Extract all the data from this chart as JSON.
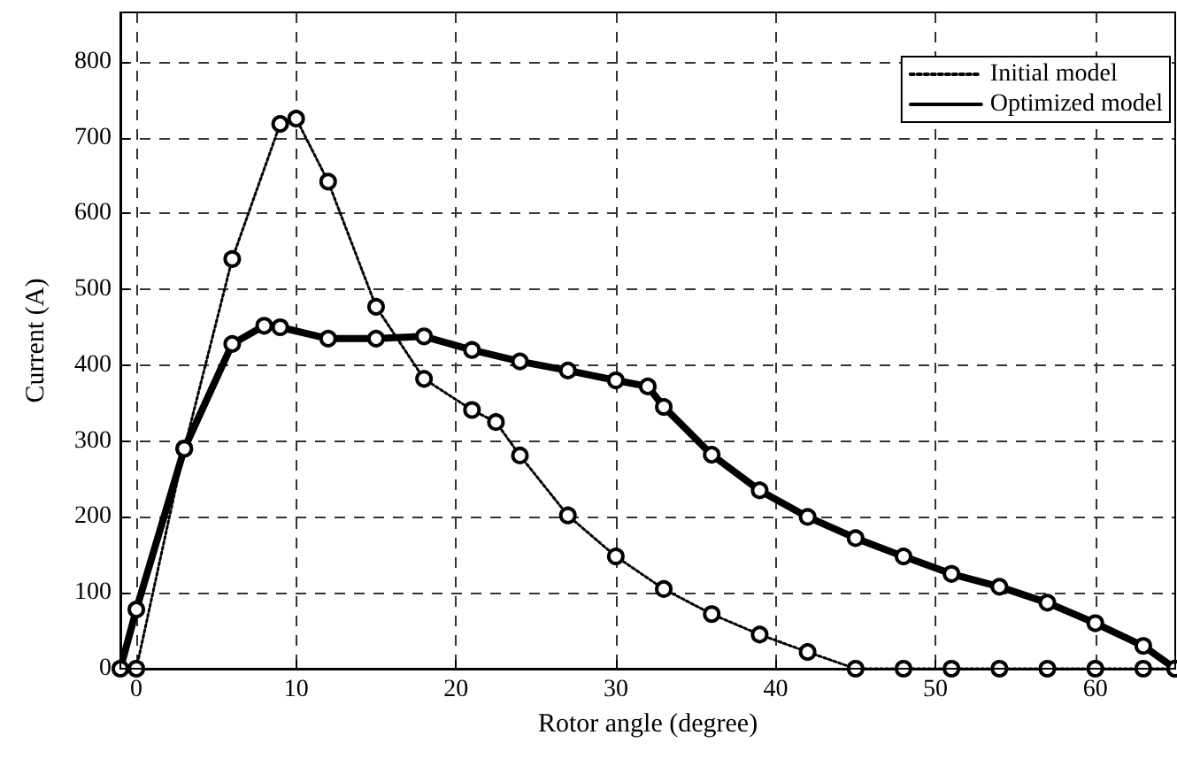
{
  "chart_data": {
    "type": "line",
    "xlabel": "Rotor angle (degree)",
    "ylabel": "Current (A)",
    "xlim": [
      -1,
      65
    ],
    "xticks": [
      0,
      10,
      20,
      30,
      40,
      50,
      60
    ],
    "ylim": [
      0,
      865
    ],
    "yticks": [
      0,
      100,
      200,
      300,
      400,
      500,
      600,
      700,
      800
    ],
    "grid": true,
    "legend": "top right",
    "marker": "circle",
    "series": [
      {
        "name": "Initial model",
        "color": "#000000",
        "line_style": "dotted",
        "x": [
          0,
          3,
          6,
          9,
          10,
          12,
          15,
          18,
          21,
          22.5,
          24,
          27,
          30,
          33,
          36,
          39,
          42,
          45,
          48,
          51,
          54,
          57,
          60,
          63,
          65
        ],
        "values": [
          0,
          290,
          540,
          718,
          725,
          642,
          477,
          382,
          341,
          325,
          281,
          202,
          148,
          105,
          72,
          45,
          22,
          0,
          0,
          0,
          0,
          0,
          0,
          0,
          0
        ]
      },
      {
        "name": "Optimized model",
        "color": "#000000",
        "line_style": "solid",
        "x": [
          -1,
          0,
          3,
          6,
          8,
          9,
          12,
          15,
          18,
          21,
          24,
          27,
          30,
          32,
          33,
          36,
          39,
          42,
          45,
          48,
          51,
          54,
          57,
          60,
          63,
          65
        ],
        "values": [
          0,
          78,
          290,
          428,
          452,
          450,
          435,
          435,
          438,
          420,
          405,
          393,
          380,
          372,
          345,
          282,
          235,
          200,
          172,
          148,
          125,
          108,
          87,
          60,
          30,
          0
        ]
      }
    ]
  }
}
